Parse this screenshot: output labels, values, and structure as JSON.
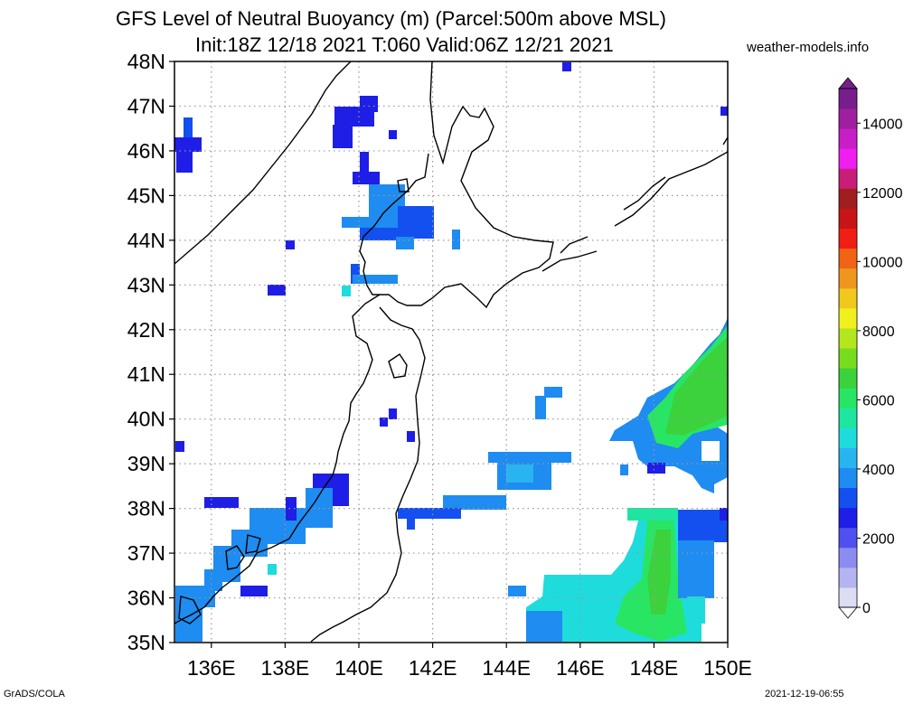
{
  "header": {
    "title_line1": "GFS Level of Neutral Buoyancy (m) (Parcel:500m above MSL)",
    "title_line2": "Init:18Z 12/18 2021 T:060 Valid:06Z 12/21 2021",
    "site": "weather-models.info"
  },
  "footer": {
    "left": "GrADS/COLA",
    "right": "2021-12-19-06:55"
  },
  "map": {
    "lat_labels": [
      "48N",
      "47N",
      "46N",
      "45N",
      "44N",
      "43N",
      "42N",
      "41N",
      "40N",
      "39N",
      "38N",
      "37N",
      "36N",
      "35N"
    ],
    "lon_labels": [
      "136E",
      "138E",
      "140E",
      "142E",
      "144E",
      "146E",
      "148E",
      "150E"
    ],
    "lat_range": [
      35,
      48
    ],
    "lon_range": [
      135,
      150
    ],
    "grid": true
  },
  "colorbar": {
    "labels": [
      "14000",
      "12000",
      "10000",
      "8000",
      "6000",
      "4000",
      "2000",
      "0"
    ],
    "range": [
      0,
      15000
    ],
    "colors": [
      "#dcdcf5",
      "#b4b4f0",
      "#8c8cf0",
      "#5050f0",
      "#1e1ee6",
      "#1450f0",
      "#1e8cf0",
      "#28b4f0",
      "#1edcdc",
      "#1ee6a0",
      "#28e664",
      "#3cd23c",
      "#78dc1e",
      "#b4e61e",
      "#f0f01e",
      "#f0c81e",
      "#f0961e",
      "#f06414",
      "#f01e14",
      "#c81414",
      "#a01e1e",
      "#c81e78",
      "#f01ef0",
      "#c81ec8",
      "#a01ea0",
      "#781e8c"
    ]
  }
}
